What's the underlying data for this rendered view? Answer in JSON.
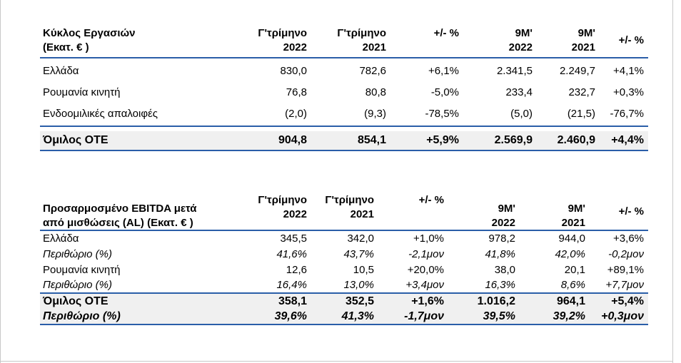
{
  "table1": {
    "header": {
      "label_line1": "Κύκλος Εργασιών",
      "label_line2": "(Εκατ. € )",
      "col1_line1": "Γ'τρίμηνο",
      "col1_line2": "2022",
      "col2_line1": "Γ'τρίμηνο",
      "col2_line2": "2021",
      "col3": "+/- %",
      "col4_line1": "9Μ'",
      "col4_line2": "2022",
      "col5_line1": "9Μ'",
      "col5_line2": "2021",
      "col6": "+/- %"
    },
    "rows": [
      {
        "label": "Ελλάδα",
        "c1": "830,0",
        "c2": "782,6",
        "c3": "+6,1%",
        "c4": "2.341,5",
        "c5": "2.249,7",
        "c6": "+4,1%"
      },
      {
        "label": "Ρουμανία κινητή",
        "c1": "76,8",
        "c2": "80,8",
        "c3": "-5,0%",
        "c4": "233,4",
        "c5": "232,7",
        "c6": "+0,3%"
      },
      {
        "label": "Ενδοομιλικές απαλοιφές",
        "c1": "(2,0)",
        "c2": "(9,3)",
        "c3": "-78,5%",
        "c4": "(5,0)",
        "c5": "(21,5)",
        "c6": "-76,7%"
      }
    ],
    "total": {
      "label": "Όμιλος ΟΤΕ",
      "c1": "904,8",
      "c2": "854,1",
      "c3": "+5,9%",
      "c4": "2.569,9",
      "c5": "2.460,9",
      "c6": "+4,4%"
    }
  },
  "table2": {
    "header": {
      "label_line1": "Προσαρμοσμένο EBITDA μετά",
      "label_line2": "από μισθώσεις (AL) (Εκατ. € )",
      "col1_line1": "Γ'τρίμηνο",
      "col1_line2": "2022",
      "col2_line1": "Γ'τρίμηνο",
      "col2_line2": "2021",
      "col3": "+/- %",
      "col4_line1": "9Μ'",
      "col4_line2": "2022",
      "col5_line1": "9Μ'",
      "col5_line2": "2021",
      "col6": "+/- %"
    },
    "rows": [
      {
        "label": "Ελλάδα",
        "c1": "345,5",
        "c2": "342,0",
        "c3": "+1,0%",
        "c4": "978,2",
        "c5": "944,0",
        "c6": "+3,6%"
      },
      {
        "label": "Περιθώριο (%)",
        "c1": "41,6%",
        "c2": "43,7%",
        "c3": "-2,1μον",
        "c4": "41,8%",
        "c5": "42,0%",
        "c6": "-0,2μον"
      },
      {
        "label": "Ρουμανία κινητή",
        "c1": "12,6",
        "c2": "10,5",
        "c3": "+20,0%",
        "c4": "38,0",
        "c5": "20,1",
        "c6": "+89,1%"
      },
      {
        "label": "Περιθώριο (%)",
        "c1": "16,4%",
        "c2": "13,0%",
        "c3": "+3,4μον",
        "c4": "16,3%",
        "c5": "8,6%",
        "c6": "+7,7μον"
      }
    ],
    "total": {
      "label": "Όμιλος ΟΤΕ",
      "c1": "358,1",
      "c2": "352,5",
      "c3": "+1,6%",
      "c4": "1.016,2",
      "c5": "964,1",
      "c6": "+5,4%"
    },
    "total_margin": {
      "label": "Περιθώριο (%)",
      "c1": "39,6%",
      "c2": "41,3%",
      "c3": "-1,7μον",
      "c4": "39,5%",
      "c5": "39,2%",
      "c6": "+0,3μον"
    }
  }
}
